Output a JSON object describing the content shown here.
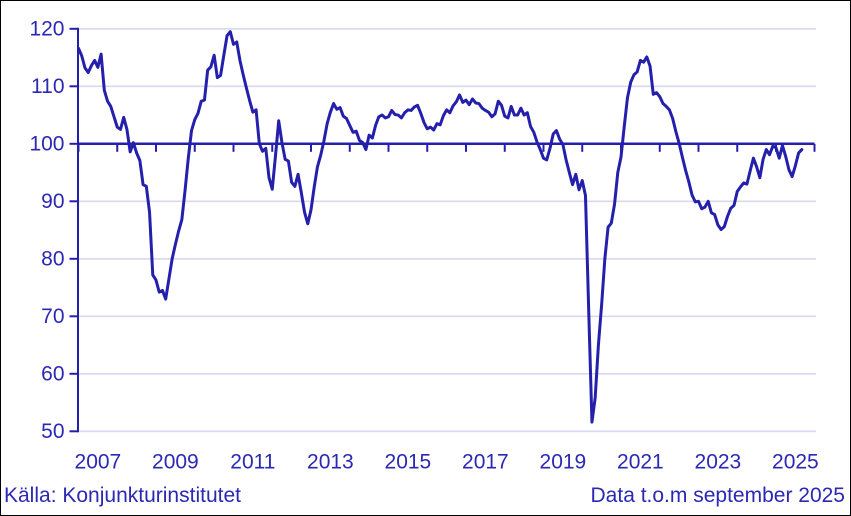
{
  "footer": {
    "source_label": "Källa: Konjunkturinstitutet",
    "data_note": "Data t.o.m september 2025"
  },
  "colors": {
    "line": "#2420AC",
    "reference_line": "#2420AC",
    "axis": "#2420AC",
    "grid": "#D8D8F0",
    "text": "#2B28B4",
    "background": "#FFFFFF",
    "border": "#000000"
  },
  "chart_data": {
    "type": "line",
    "title": "",
    "xlabel": "",
    "ylabel": "",
    "frequency": "monthly",
    "x_start": "2007-01",
    "x_end": "2025-09",
    "ylim": [
      50,
      120
    ],
    "y_ticks": [
      50,
      60,
      70,
      80,
      90,
      100,
      110,
      120
    ],
    "x_tick_labels": [
      "2007",
      "2009",
      "2011",
      "2013",
      "2015",
      "2017",
      "2019",
      "2021",
      "2023",
      "2025"
    ],
    "x_axis_tick_years": [
      2007,
      2008,
      2009,
      2010,
      2011,
      2012,
      2013,
      2014,
      2015,
      2016,
      2017,
      2018,
      2019,
      2020,
      2021,
      2022,
      2023,
      2024,
      2025,
      2026
    ],
    "reference_line": 100,
    "grid": "horizontal",
    "legend": "none",
    "series": [
      {
        "start": "2007-01",
        "values": [
          116.6,
          115.3,
          113.2,
          112.4,
          113.6,
          114.5,
          113.3,
          115.6,
          109.3,
          107.4,
          106.5,
          104.7,
          102.9,
          102.5,
          104.6,
          102.5,
          98.6,
          100.2,
          98.4,
          97.1,
          92.9,
          92.6,
          88.1,
          77.2,
          76.3,
          74.2,
          74.5,
          73.0,
          76.5,
          80.0,
          82.5,
          84.8,
          86.8,
          91.9,
          97.5,
          102.3,
          104.2,
          105.3,
          107.4,
          107.6,
          112.8,
          113.4,
          115.4,
          111.5,
          111.9,
          115.4,
          118.8,
          119.5,
          117.3,
          117.7,
          114.5,
          112.0,
          109.7,
          107.5,
          105.5,
          105.9,
          100.0,
          98.7,
          99.2,
          94.1,
          92.1,
          97.9,
          104.0,
          100.2,
          97.3,
          97.0,
          93.3,
          92.6,
          94.7,
          91.5,
          88.1,
          86.1,
          88.5,
          92.5,
          96.0,
          98.0,
          100.5,
          103.5,
          105.5,
          107.0,
          106.0,
          106.3,
          104.8,
          104.4,
          103.2,
          102.0,
          102.2,
          100.6,
          100.2,
          99.0,
          101.5,
          101.0,
          103.2,
          104.7,
          105.0,
          104.5,
          104.7,
          105.8,
          105.1,
          105.0,
          104.5,
          105.4,
          105.9,
          105.8,
          106.4,
          106.7,
          105.3,
          103.7,
          102.6,
          102.9,
          102.4,
          103.5,
          103.3,
          104.9,
          105.9,
          105.4,
          106.6,
          107.3,
          108.5,
          107.2,
          107.6,
          106.8,
          107.8,
          107.1,
          107.0,
          106.2,
          105.8,
          105.5,
          104.7,
          105.2,
          107.4,
          106.7,
          104.8,
          104.5,
          106.5,
          105.0,
          105.0,
          106.2,
          105.0,
          105.4,
          103.0,
          102.0,
          100.3,
          99.0,
          97.5,
          97.2,
          99.2,
          101.7,
          102.3,
          100.8,
          99.9,
          97.2,
          95.0,
          92.9,
          94.7,
          92.0,
          93.6,
          91.0,
          71.0,
          51.6,
          55.8,
          65.0,
          72.0,
          80.0,
          85.5,
          86.2,
          89.5,
          95.0,
          97.7,
          103.0,
          108.0,
          110.7,
          112.0,
          112.5,
          114.5,
          114.2,
          115.1,
          113.5,
          108.6,
          108.9,
          108.2,
          107.0,
          106.5,
          105.9,
          104.4,
          102.1,
          100.1,
          97.7,
          95.4,
          93.4,
          91.1,
          89.9,
          90.0,
          88.7,
          89.0,
          90.0,
          88.0,
          87.7,
          85.9,
          85.1,
          85.6,
          87.4,
          88.8,
          89.3,
          91.7,
          92.5,
          93.2,
          93.0,
          95.3,
          97.5,
          96.0,
          94.1,
          97.3,
          99.0,
          98.1,
          99.6,
          99.3,
          97.5,
          99.7,
          97.8,
          95.5,
          94.3,
          96.2,
          98.4,
          99.0
        ]
      }
    ]
  }
}
